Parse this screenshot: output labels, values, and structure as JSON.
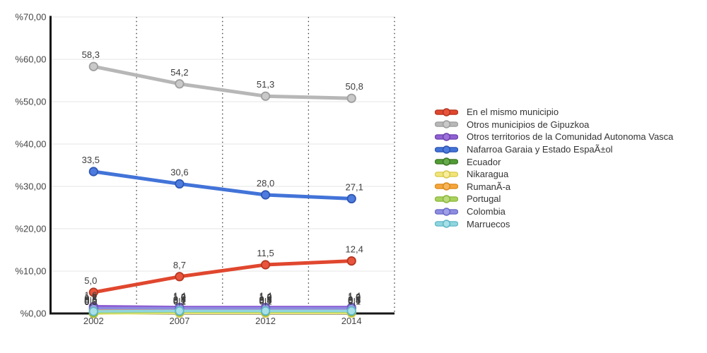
{
  "chart_data": {
    "type": "line",
    "title": "",
    "categories": [
      "2002",
      "2007",
      "2012",
      "2014"
    ],
    "y_ticks": [
      {
        "v": 0,
        "label": "%0,00"
      },
      {
        "v": 10,
        "label": "%10,00"
      },
      {
        "v": 20,
        "label": "%20,00"
      },
      {
        "v": 30,
        "label": "%30,00"
      },
      {
        "v": 40,
        "label": "%40,00"
      },
      {
        "v": 50,
        "label": "%50,00"
      },
      {
        "v": 60,
        "label": "%60,00"
      },
      {
        "v": 70,
        "label": "%70,00"
      }
    ],
    "ylim": [
      0,
      70
    ],
    "legend_position": "right",
    "grid": {
      "horizontal_solid": true,
      "vertical_dotted": true
    },
    "series": [
      {
        "name": "En el mismo municipio",
        "color": "#E0472E",
        "fill": "#E8553C",
        "dark": "#B53621",
        "width": 5,
        "values": [
          5.0,
          8.7,
          11.5,
          12.4
        ],
        "labels": [
          "5,0",
          "8,7",
          "11,5",
          "12,4"
        ]
      },
      {
        "name": "Otros municipios de Gipuzkoa",
        "color": "#B7B7B7",
        "fill": "#C9C9C9",
        "dark": "#9E9E9E",
        "width": 5,
        "values": [
          58.3,
          54.2,
          51.3,
          50.8
        ],
        "labels": [
          "58,3",
          "54,2",
          "51,3",
          "50,8"
        ]
      },
      {
        "name": "Otros territorios de la Comunidad Autonoma Vasca",
        "color": "#8F60D2",
        "fill": "#9D72DA",
        "dark": "#6F42AE",
        "width": 5,
        "values": [
          1.6,
          1.4,
          1.4,
          1.4
        ],
        "labels": [
          "1,6",
          "1,4",
          "1,4",
          "1,4"
        ]
      },
      {
        "name": "Nafarroa Garaia y Estado EspaÃ±ol",
        "color": "#4273D8",
        "fill": "#4E7CDE",
        "dark": "#2D55B2",
        "width": 5,
        "values": [
          33.5,
          30.6,
          28.0,
          27.1
        ],
        "labels": [
          "33,5",
          "30,6",
          "28,0",
          "27,1"
        ]
      },
      {
        "name": "Ecuador",
        "color": "#519B35",
        "fill": "#66AC4B",
        "dark": "#3E7A27",
        "width": 3.5,
        "values": [
          0.0,
          0.2,
          0.3,
          0.3
        ],
        "labels": [
          "0,0",
          "0,2",
          "0,3",
          "0,3"
        ]
      },
      {
        "name": "Nikaragua",
        "color": "#F1E579",
        "fill": "#F6EE9E",
        "dark": "#D9C94F",
        "width": 3.5,
        "values": [
          0.0,
          0.1,
          0.1,
          0.1
        ],
        "labels": [
          "0,0",
          "0,1",
          "0,1",
          "0,1"
        ]
      },
      {
        "name": "RumanÃ-a",
        "color": "#F5A63B",
        "fill": "#F7B55C",
        "dark": "#DB8B1D",
        "width": 3.5,
        "values": [
          0.8,
          1.0,
          1.0,
          1.0
        ],
        "labels": [
          "0,8",
          "1,0",
          "1,0",
          "1,0"
        ]
      },
      {
        "name": "Portugal",
        "color": "#A9D15E",
        "fill": "#BCDA7E",
        "dark": "#8BB83B",
        "width": 3.5,
        "values": [
          0.2,
          0.4,
          0.4,
          0.4
        ],
        "labels": [
          "0,2",
          "0,4",
          "0,4",
          "0,4"
        ]
      },
      {
        "name": "Colombia",
        "color": "#8C8CE0",
        "fill": "#A0A0E8",
        "dark": "#6B6BC8",
        "width": 3.5,
        "values": [
          1.2,
          1.2,
          1.2,
          1.2
        ],
        "labels": [
          "1,2",
          "1,2",
          "1,2",
          "1,2"
        ]
      },
      {
        "name": "Marruecos",
        "color": "#8FD5DF",
        "fill": "#A8E0E8",
        "dark": "#5FB6C6",
        "width": 3.5,
        "values": [
          0.5,
          0.6,
          0.6,
          0.6
        ],
        "labels": [
          "0,5",
          "0,6",
          "0,6",
          "0,6"
        ]
      }
    ]
  }
}
